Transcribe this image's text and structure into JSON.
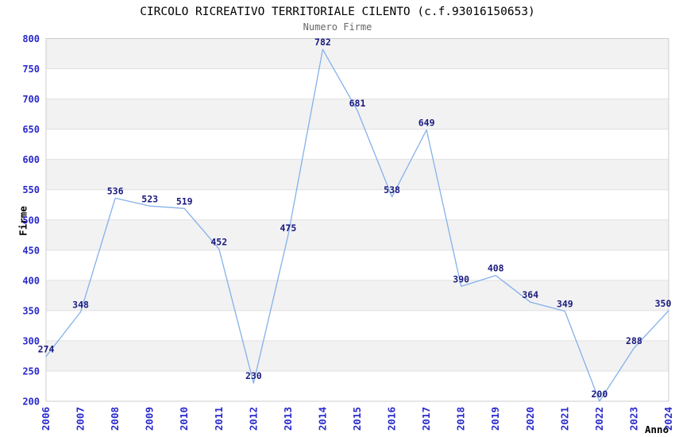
{
  "header": {
    "title": "CIRCOLO RICREATIVO TERRITORIALE CILENTO (c.f.93016150653)",
    "subtitle": "Numero Firme"
  },
  "axes": {
    "y_title": "Firme",
    "x_title": "Anno"
  },
  "colors": {
    "line": "#85b1ea",
    "tick_label": "#2929cc",
    "data_label": "#1a1a80",
    "band": "#f2f2f2",
    "gridline": "#e0e0e0",
    "border": "#cccccc",
    "title": "#000000",
    "subtitle": "#666666"
  },
  "chart_data": {
    "type": "line",
    "title": "CIRCOLO RICREATIVO TERRITORIALE CILENTO (c.f.93016150653)",
    "subtitle": "Numero Firme",
    "xlabel": "Anno",
    "ylabel": "Firme",
    "x": [
      2006,
      2007,
      2008,
      2009,
      2010,
      2011,
      2012,
      2013,
      2014,
      2015,
      2016,
      2017,
      2018,
      2019,
      2020,
      2021,
      2022,
      2023,
      2024
    ],
    "values": [
      274,
      348,
      536,
      523,
      519,
      452,
      230,
      475,
      782,
      681,
      538,
      649,
      390,
      408,
      364,
      349,
      200,
      288,
      350
    ],
    "ylim": [
      200,
      800
    ],
    "ytick_step": 50,
    "grid": "horizontal gridlines with alternating gray/white 50-unit bands",
    "legend": "none",
    "data_labels_visible": true,
    "x_tick_rotation_deg": -90
  }
}
